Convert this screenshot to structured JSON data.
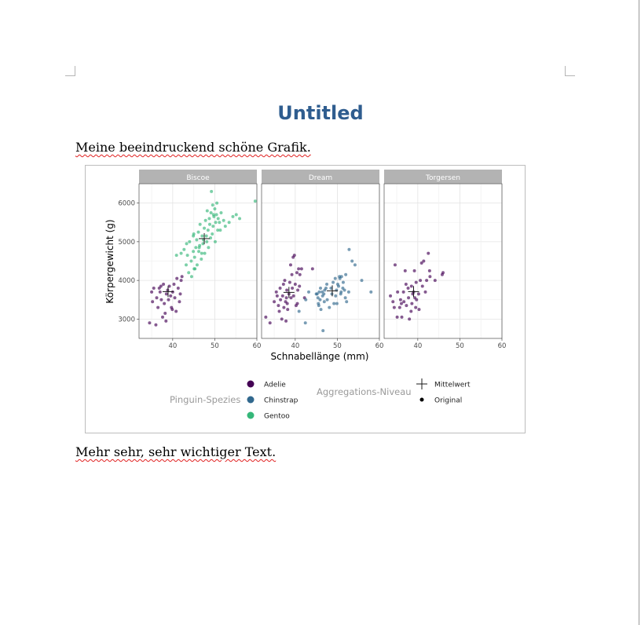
{
  "document": {
    "title": "Untitled",
    "paragraph_before": "Meine beeindruckend schöne Grafik.",
    "paragraph_after": "Mehr sehr, sehr wichtiger Text."
  },
  "colors": {
    "title": "#2f5d8f",
    "adelie": "#440154",
    "chinstrap": "#31688e",
    "gentoo": "#35b779",
    "strip": "#b3b3b3"
  },
  "chart_data": {
    "type": "scatter",
    "facets": [
      "Biscoe",
      "Dream",
      "Torgersen"
    ],
    "xlabel": "Schnabellänge (mm)",
    "ylabel": "Körpergewicht (g)",
    "xlim": [
      32,
      60
    ],
    "ylim": [
      2500,
      6500
    ],
    "x_ticks": [
      40,
      50,
      60
    ],
    "y_ticks": [
      3000,
      4000,
      5000,
      6000
    ],
    "grid": true,
    "legend_placement": "bottom",
    "legend": {
      "species_title": "Pinguin-Spezies",
      "species": [
        "Adelie",
        "Chinstrap",
        "Gentoo"
      ],
      "aggregation_title": "Aggregations-Niveau",
      "aggregation": [
        "Mittelwert",
        "Original"
      ]
    },
    "series": [
      {
        "name": "Adelie",
        "panel": "Biscoe",
        "mean": [
          38.9,
          3710
        ],
        "points": [
          [
            34.5,
            2900
          ],
          [
            35.2,
            3450
          ],
          [
            35.5,
            3800
          ],
          [
            36.0,
            2850
          ],
          [
            36.2,
            3550
          ],
          [
            36.5,
            3300
          ],
          [
            37.0,
            3700
          ],
          [
            37.3,
            3500
          ],
          [
            37.6,
            3050
          ],
          [
            37.8,
            3900
          ],
          [
            38.0,
            3400
          ],
          [
            38.2,
            3150
          ],
          [
            38.5,
            3650
          ],
          [
            38.8,
            3750
          ],
          [
            39.0,
            3500
          ],
          [
            39.2,
            3850
          ],
          [
            39.5,
            3600
          ],
          [
            39.7,
            3300
          ],
          [
            40.0,
            3700
          ],
          [
            40.3,
            3900
          ],
          [
            40.5,
            3550
          ],
          [
            40.8,
            3200
          ],
          [
            41.0,
            4050
          ],
          [
            41.3,
            3800
          ],
          [
            41.6,
            3450
          ],
          [
            42.0,
            4000
          ],
          [
            42.2,
            4100
          ],
          [
            36.8,
            3800
          ],
          [
            38.4,
            2950
          ],
          [
            39.9,
            3250
          ],
          [
            35.0,
            3700
          ],
          [
            41.8,
            3650
          ],
          [
            37.2,
            3850
          ]
        ]
      },
      {
        "name": "Gentoo",
        "panel": "Biscoe",
        "mean": [
          47.5,
          5080
        ],
        "points": [
          [
            40.9,
            4650
          ],
          [
            42.0,
            4700
          ],
          [
            42.7,
            4800
          ],
          [
            43.2,
            4400
          ],
          [
            43.5,
            4650
          ],
          [
            43.8,
            4200
          ],
          [
            44.0,
            5000
          ],
          [
            44.4,
            4500
          ],
          [
            44.5,
            4100
          ],
          [
            44.9,
            4750
          ],
          [
            45.0,
            5200
          ],
          [
            45.2,
            4600
          ],
          [
            45.3,
            4300
          ],
          [
            45.5,
            4850
          ],
          [
            45.7,
            5050
          ],
          [
            45.8,
            4400
          ],
          [
            46.1,
            5250
          ],
          [
            46.2,
            4750
          ],
          [
            46.4,
            4900
          ],
          [
            46.5,
            5450
          ],
          [
            46.8,
            4550
          ],
          [
            47.0,
            5150
          ],
          [
            47.2,
            4950
          ],
          [
            47.5,
            5350
          ],
          [
            47.6,
            4700
          ],
          [
            47.8,
            5550
          ],
          [
            48.1,
            5000
          ],
          [
            48.2,
            5800
          ],
          [
            48.4,
            5300
          ],
          [
            48.5,
            4850
          ],
          [
            48.7,
            5600
          ],
          [
            48.8,
            5450
          ],
          [
            49.0,
            5100
          ],
          [
            49.1,
            5750
          ],
          [
            49.2,
            6300
          ],
          [
            49.4,
            5200
          ],
          [
            49.5,
            5950
          ],
          [
            49.6,
            5400
          ],
          [
            49.8,
            5650
          ],
          [
            50.0,
            5850
          ],
          [
            50.2,
            5500
          ],
          [
            50.4,
            5700
          ],
          [
            50.5,
            6000
          ],
          [
            50.7,
            5300
          ],
          [
            50.8,
            5600
          ],
          [
            51.1,
            5500
          ],
          [
            51.3,
            5300
          ],
          [
            51.5,
            5750
          ],
          [
            52.1,
            5550
          ],
          [
            52.5,
            5400
          ],
          [
            53.4,
            5500
          ],
          [
            54.3,
            5650
          ],
          [
            55.1,
            5700
          ],
          [
            55.9,
            5600
          ],
          [
            59.6,
            6050
          ],
          [
            44.9,
            5150
          ],
          [
            46.3,
            4850
          ],
          [
            47.3,
            5050
          ],
          [
            43.3,
            4950
          ],
          [
            45.1,
            4300
          ],
          [
            46.9,
            4700
          ],
          [
            48.0,
            5150
          ],
          [
            50.1,
            5000
          ],
          [
            49.7,
            5700
          ]
        ]
      },
      {
        "name": "Adelie",
        "panel": "Dream",
        "mean": [
          38.5,
          3690
        ],
        "points": [
          [
            33.0,
            3050
          ],
          [
            34.0,
            2900
          ],
          [
            35.0,
            3450
          ],
          [
            35.5,
            3700
          ],
          [
            36.0,
            3350
          ],
          [
            36.2,
            3200
          ],
          [
            36.5,
            3500
          ],
          [
            36.8,
            3000
          ],
          [
            37.0,
            3600
          ],
          [
            37.2,
            3900
          ],
          [
            37.3,
            3300
          ],
          [
            37.5,
            4000
          ],
          [
            37.7,
            3450
          ],
          [
            37.8,
            2950
          ],
          [
            38.0,
            3750
          ],
          [
            38.2,
            3250
          ],
          [
            38.5,
            3650
          ],
          [
            38.7,
            3950
          ],
          [
            38.9,
            4400
          ],
          [
            39.0,
            3550
          ],
          [
            39.2,
            4150
          ],
          [
            39.3,
            3800
          ],
          [
            39.5,
            4600
          ],
          [
            39.6,
            3600
          ],
          [
            39.8,
            4650
          ],
          [
            40.0,
            3900
          ],
          [
            40.2,
            3350
          ],
          [
            40.4,
            4200
          ],
          [
            40.5,
            3400
          ],
          [
            40.6,
            3750
          ],
          [
            40.8,
            4300
          ],
          [
            41.0,
            3850
          ],
          [
            41.1,
            4150
          ],
          [
            41.5,
            4300
          ],
          [
            42.2,
            3550
          ],
          [
            44.1,
            4300
          ],
          [
            35.7,
            3600
          ],
          [
            36.4,
            3800
          ],
          [
            37.9,
            3550
          ],
          [
            38.1,
            3400
          ]
        ]
      },
      {
        "name": "Chinstrap",
        "panel": "Dream",
        "mean": [
          48.8,
          3730
        ],
        "points": [
          [
            40.9,
            3200
          ],
          [
            42.4,
            2900
          ],
          [
            42.5,
            3500
          ],
          [
            43.2,
            3700
          ],
          [
            45.2,
            3650
          ],
          [
            45.4,
            3550
          ],
          [
            45.5,
            3400
          ],
          [
            45.6,
            3350
          ],
          [
            45.7,
            3700
          ],
          [
            45.9,
            3500
          ],
          [
            46.0,
            3800
          ],
          [
            46.1,
            3250
          ],
          [
            46.4,
            3700
          ],
          [
            46.5,
            3600
          ],
          [
            46.6,
            2700
          ],
          [
            46.8,
            3650
          ],
          [
            46.9,
            3450
          ],
          [
            47.0,
            3750
          ],
          [
            47.5,
            3900
          ],
          [
            47.6,
            3500
          ],
          [
            48.1,
            3300
          ],
          [
            48.5,
            3800
          ],
          [
            48.7,
            3650
          ],
          [
            49.0,
            3950
          ],
          [
            49.2,
            3400
          ],
          [
            49.5,
            4050
          ],
          [
            49.6,
            3600
          ],
          [
            49.8,
            3750
          ],
          [
            50.1,
            3900
          ],
          [
            50.3,
            3850
          ],
          [
            50.5,
            4100
          ],
          [
            50.6,
            4050
          ],
          [
            50.8,
            3650
          ],
          [
            50.9,
            3700
          ],
          [
            51.0,
            4100
          ],
          [
            51.3,
            3800
          ],
          [
            51.4,
            3950
          ],
          [
            51.7,
            3750
          ],
          [
            51.9,
            3550
          ],
          [
            52.0,
            4150
          ],
          [
            52.2,
            3450
          ],
          [
            52.7,
            3700
          ],
          [
            52.8,
            4800
          ],
          [
            53.5,
            4500
          ],
          [
            54.2,
            4400
          ],
          [
            55.8,
            4000
          ],
          [
            58.0,
            3700
          ],
          [
            49.9,
            3400
          ],
          [
            47.3,
            3800
          ],
          [
            45.0,
            3650
          ]
        ]
      },
      {
        "name": "Adelie",
        "panel": "Torgersen",
        "mean": [
          39.0,
          3710
        ],
        "points": [
          [
            33.5,
            3600
          ],
          [
            34.1,
            3450
          ],
          [
            34.4,
            3300
          ],
          [
            34.6,
            4400
          ],
          [
            35.1,
            3050
          ],
          [
            35.2,
            3700
          ],
          [
            35.7,
            3300
          ],
          [
            35.9,
            3500
          ],
          [
            36.2,
            3050
          ],
          [
            36.6,
            3700
          ],
          [
            36.7,
            3450
          ],
          [
            37.2,
            3900
          ],
          [
            37.3,
            3350
          ],
          [
            37.7,
            3800
          ],
          [
            37.8,
            3550
          ],
          [
            38.4,
            3200
          ],
          [
            38.5,
            3850
          ],
          [
            38.6,
            3400
          ],
          [
            38.8,
            3650
          ],
          [
            39.0,
            3700
          ],
          [
            39.2,
            4250
          ],
          [
            39.3,
            3550
          ],
          [
            39.5,
            3300
          ],
          [
            39.6,
            3950
          ],
          [
            39.7,
            3500
          ],
          [
            40.2,
            3650
          ],
          [
            40.3,
            3250
          ],
          [
            40.6,
            4000
          ],
          [
            40.9,
            4450
          ],
          [
            41.1,
            3850
          ],
          [
            41.4,
            4500
          ],
          [
            41.8,
            3700
          ],
          [
            42.1,
            4000
          ],
          [
            42.5,
            4700
          ],
          [
            42.8,
            4250
          ],
          [
            42.9,
            4100
          ],
          [
            44.1,
            4000
          ],
          [
            45.8,
            4150
          ],
          [
            46.0,
            4200
          ],
          [
            36.1,
            3400
          ],
          [
            38.0,
            3000
          ],
          [
            37.0,
            4250
          ]
        ]
      }
    ]
  }
}
